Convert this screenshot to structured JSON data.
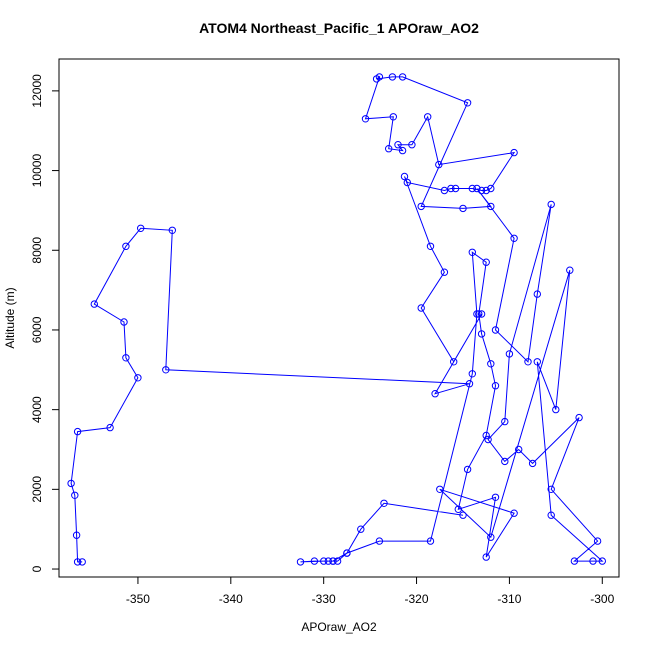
{
  "chart_data": {
    "type": "line",
    "title": "ATOM4 Northeast_Pacific_1 APOraw_AO2",
    "xlabel": "APOraw_AO2",
    "ylabel": "Altitude (m)",
    "xlim": [
      -358.5,
      -298.2
    ],
    "ylim": [
      -200,
      12800
    ],
    "xticks": [
      -350,
      -340,
      -330,
      -320,
      -310,
      -300
    ],
    "yticks": [
      0,
      2000,
      4000,
      6000,
      8000,
      10000,
      12000
    ],
    "xtick_labels": [
      "-350",
      "-340",
      "-330",
      "-320",
      "-310",
      "-300"
    ],
    "ytick_labels": [
      "0",
      "2000",
      "4000",
      "6000",
      "8000",
      "10000",
      "12000"
    ],
    "grid": false,
    "markers": "open-circle",
    "colors": {
      "series": "#0000ff",
      "axis": "#000000"
    },
    "series": [
      {
        "points": [
          [
            -356.0,
            180
          ],
          [
            -356.5,
            180
          ],
          [
            -356.6,
            850
          ],
          [
            -356.8,
            1850
          ],
          [
            -357.2,
            2150
          ],
          [
            -356.5,
            3450
          ],
          [
            -353.0,
            3550
          ],
          [
            -350.0,
            4800
          ],
          [
            -351.3,
            5300
          ],
          [
            -351.5,
            6200
          ],
          [
            -354.7,
            6650
          ],
          [
            -351.3,
            8100
          ],
          [
            -349.7,
            8550
          ],
          [
            -346.3,
            8500
          ],
          [
            -347.0,
            5000
          ],
          [
            -314.3,
            4650
          ],
          [
            -318.0,
            4400
          ],
          [
            -313.0,
            6400
          ],
          [
            -316.0,
            5200
          ],
          [
            -319.5,
            6550
          ],
          [
            -317.0,
            7450
          ],
          [
            -318.5,
            8100
          ],
          [
            -321.3,
            9850
          ],
          [
            -321.0,
            9700
          ],
          [
            -317.0,
            9500
          ],
          [
            -316.3,
            9550
          ],
          [
            -315.8,
            9550
          ],
          [
            -314.0,
            9550
          ],
          [
            -313.0,
            9500
          ],
          [
            -312.5,
            9500
          ],
          [
            -312.0,
            9550
          ],
          [
            -309.5,
            10450
          ],
          [
            -317.6,
            10150
          ],
          [
            -318.8,
            11350
          ],
          [
            -320.5,
            10650
          ],
          [
            -322.0,
            10650
          ],
          [
            -321.5,
            10500
          ],
          [
            -323.0,
            10550
          ],
          [
            -322.5,
            11350
          ],
          [
            -325.5,
            11300
          ],
          [
            -324.0,
            12350
          ],
          [
            -324.3,
            12300
          ],
          [
            -322.6,
            12350
          ],
          [
            -321.5,
            12350
          ],
          [
            -314.5,
            11700
          ],
          [
            -319.5,
            9100
          ],
          [
            -315.0,
            9050
          ],
          [
            -312.0,
            9100
          ],
          [
            -313.5,
            9550
          ],
          [
            -309.5,
            8300
          ],
          [
            -311.5,
            6000
          ],
          [
            -308.0,
            5200
          ],
          [
            -307.0,
            6900
          ],
          [
            -305.5,
            9150
          ],
          [
            -310.0,
            5400
          ],
          [
            -310.5,
            3700
          ],
          [
            -312.3,
            3250
          ],
          [
            -310.5,
            2700
          ],
          [
            -309.0,
            3000
          ],
          [
            -307.5,
            2650
          ],
          [
            -302.5,
            3800
          ],
          [
            -305.5,
            2000
          ],
          [
            -300.5,
            700
          ],
          [
            -303.0,
            200
          ],
          [
            -301.0,
            200
          ],
          [
            -300.0,
            200
          ],
          [
            -305.5,
            1350
          ],
          [
            -307.0,
            5200
          ],
          [
            -305.0,
            4000
          ],
          [
            -303.5,
            7500
          ],
          [
            -312.0,
            800
          ],
          [
            -317.5,
            2000
          ],
          [
            -309.5,
            1400
          ],
          [
            -312.5,
            300
          ],
          [
            -311.5,
            1800
          ],
          [
            -315.5,
            1500
          ],
          [
            -314.5,
            2500
          ],
          [
            -312.5,
            3350
          ],
          [
            -311.5,
            4600
          ],
          [
            -312.0,
            5150
          ],
          [
            -313.0,
            5900
          ],
          [
            -313.3,
            6400
          ],
          [
            -312.5,
            7700
          ],
          [
            -314.0,
            7950
          ],
          [
            -313.5,
            6400
          ],
          [
            -314.0,
            4900
          ],
          [
            -318.5,
            700
          ],
          [
            -324.0,
            700
          ],
          [
            -327.5,
            400
          ],
          [
            -328.5,
            200
          ],
          [
            -329.0,
            200
          ],
          [
            -329.5,
            200
          ],
          [
            -330.0,
            200
          ],
          [
            -332.5,
            180
          ],
          [
            -331.0,
            200
          ],
          [
            -329.0,
            200
          ],
          [
            -327.5,
            400
          ],
          [
            -326.0,
            1000
          ],
          [
            -323.5,
            1650
          ],
          [
            -315.0,
            1350
          ]
        ]
      }
    ]
  }
}
